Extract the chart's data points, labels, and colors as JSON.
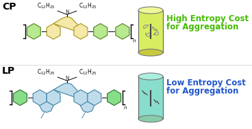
{
  "bg_color": "#ffffff",
  "cp_label": "CP",
  "lp_label": "LP",
  "high_entropy_text_1": "High Entropy Cost",
  "high_entropy_text_2": "for Aggregation",
  "low_entropy_text_1": "Low Entropy Cost",
  "low_entropy_text_2": "for Aggregation",
  "high_entropy_color": "#44bb00",
  "low_entropy_color": "#2255cc",
  "cylinder_top_cp": "#eef898",
  "cylinder_body_cp": "#d8ee60",
  "cylinder_bottom_cp": "#c8c840",
  "cylinder_top_lp": "#aaeedd",
  "cylinder_body_lp": "#88ddcc",
  "cylinder_bottom_lp": "#88ccaa",
  "cp_core_color": "#f5e8a8",
  "cp_core_edge": "#aa9922",
  "cp_phenyl_color": "#b8e890",
  "cp_phenyl_edge": "#558822",
  "lp_core_color": "#c0dcea",
  "lp_core_edge": "#4488aa",
  "lp_phenyl_color": "#88dd88",
  "lp_phenyl_edge": "#337733",
  "label_fontsize": 10,
  "entropy_fontsize": 8.5,
  "chain_text_fontsize": 5.5
}
